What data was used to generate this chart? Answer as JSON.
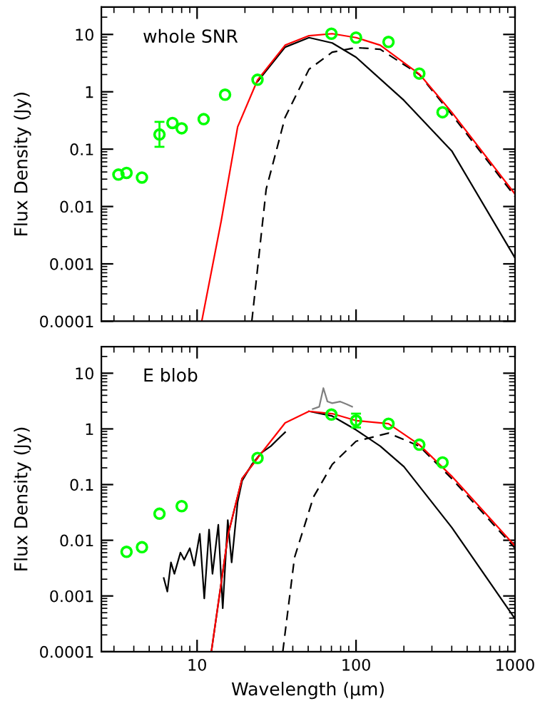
{
  "chart_data": [
    {
      "type": "line",
      "ylabel": "Flux Density (Jy)",
      "annotations": [
        "whole SNR"
      ],
      "xlim": [
        2.5,
        1000
      ],
      "ylim": [
        0.0001,
        30
      ],
      "log": "xy",
      "xticks": [
        10,
        100,
        1000
      ],
      "yticks": [
        0.0001,
        0.001,
        0.01,
        0.1,
        1,
        10
      ],
      "tick_labels": "y",
      "legend": false,
      "grid": false,
      "series": [
        {
          "color": "#000000",
          "line_style": "solid",
          "x": [
            24,
            35.8,
            50.6,
            70.8,
            100,
            200,
            400,
            1000
          ],
          "values": [
            1.5,
            6.0,
            8.8,
            7.1,
            4.0,
            0.71,
            0.093,
            0.00127
          ]
        },
        {
          "color": "#000000",
          "line_style": "dashed",
          "x": [
            22.1,
            27.2,
            35.8,
            50.6,
            70.8,
            100,
            142,
            250,
            400,
            1000
          ],
          "values": [
            0.0001,
            0.02,
            0.36,
            2.47,
            4.9,
            5.9,
            5.5,
            2.0,
            0.4,
            0.015
          ]
        },
        {
          "color": "#ff0000",
          "line_style": "solid",
          "x": [
            10.7,
            14.2,
            18,
            24,
            35.8,
            50.6,
            70.8,
            100,
            142,
            250,
            400,
            1000
          ],
          "values": [
            0.0001,
            0.0057,
            0.245,
            1.6,
            6.5,
            9.5,
            10.3,
            8.8,
            6.5,
            2.04,
            0.44,
            0.0165
          ]
        },
        {
          "type": "scatter",
          "color": "#00ff00",
          "marker": "circle",
          "x": [
            3.2,
            3.6,
            4.5,
            5.8,
            7,
            8,
            11,
            15,
            24,
            70,
            100,
            160,
            250,
            350
          ],
          "values": [
            0.036,
            0.0385,
            0.032,
            0.18,
            0.286,
            0.231,
            0.333,
            0.89,
            1.62,
            10.3,
            8.8,
            7.4,
            2.08,
            0.44
          ],
          "errors": [
            null,
            null,
            null,
            [
              0.11,
              0.3
            ],
            null,
            null,
            null,
            null,
            null,
            null,
            null,
            null,
            null,
            null
          ]
        }
      ]
    },
    {
      "type": "line",
      "xlabel": "Wavelength (μm)",
      "ylabel": "Flux Density (Jy)",
      "annotations": [
        "E blob"
      ],
      "xlim": [
        2.5,
        1000
      ],
      "ylim": [
        0.0001,
        30
      ],
      "log": "xy",
      "xticks": [
        10,
        100,
        1000
      ],
      "yticks": [
        0.0001,
        0.001,
        0.01,
        0.1,
        1,
        10
      ],
      "legend": false,
      "grid": false,
      "series": [
        {
          "color": "#000000",
          "line_style": "solid",
          "x": [
            6.17,
            6.5,
            6.85,
            7.2,
            7.86,
            8.3,
            9.0,
            9.6,
            10.4,
            11.1,
            11.9,
            12.5,
            13.6,
            14.5,
            15.6,
            16.5,
            18,
            19.2,
            22.1,
            25.3,
            29.1,
            33.4,
            35.8
          ],
          "values": [
            0.0021,
            0.0012,
            0.004,
            0.0025,
            0.006,
            0.0045,
            0.0072,
            0.0035,
            0.013,
            0.0009,
            0.0156,
            0.0025,
            0.019,
            0.0006,
            0.023,
            0.004,
            0.049,
            0.117,
            0.23,
            0.37,
            0.49,
            0.72,
            0.87
          ]
        },
        {
          "color": "#808080",
          "line_style": "solid",
          "x": [
            53.4,
            58.7,
            62.3,
            66.1,
            70.8,
            79.2,
            87.7,
            94.5
          ],
          "values": [
            2.28,
            2.5,
            5.4,
            3.1,
            2.9,
            3.1,
            2.76,
            2.5
          ]
        },
        {
          "color": "#000000",
          "line_style": "solid",
          "x": [
            12.3,
            15.7,
            19.2,
            24,
            35.8,
            50.6,
            70.8,
            100,
            142,
            200,
            400,
            1000
          ],
          "values": [
            0.0001,
            0.013,
            0.128,
            0.3,
            null,
            2.07,
            1.7,
            0.96,
            0.49,
            0.21,
            0.017,
            0.00039
          ]
        },
        {
          "color": "#000000",
          "line_style": "dashed",
          "x": [
            34.6,
            41,
            54,
            70.8,
            100,
            160,
            250,
            400,
            1000
          ],
          "values": [
            0.0001,
            0.0049,
            0.06,
            0.23,
            0.6,
            0.84,
            0.49,
            0.128,
            0.0072
          ]
        },
        {
          "color": "#ff0000",
          "line_style": "solid",
          "x": [
            12.3,
            15.7,
            19.2,
            24,
            35.8,
            50.6,
            70.8,
            100,
            160,
            250,
            400,
            1000
          ],
          "values": [
            0.0001,
            0.013,
            0.128,
            0.3,
            1.28,
            2.07,
            1.88,
            1.41,
            1.24,
            0.52,
            0.141,
            0.0079
          ]
        },
        {
          "type": "scatter",
          "color": "#00ff00",
          "marker": "circle",
          "x": [
            3.6,
            4.5,
            5.8,
            8,
            24,
            70,
            100,
            160,
            250,
            350
          ],
          "values": [
            0.0062,
            0.0075,
            0.03,
            0.041,
            0.3,
            1.81,
            1.41,
            1.24,
            0.52,
            0.25
          ],
          "errors": [
            null,
            null,
            null,
            null,
            null,
            null,
            [
              1.06,
              1.88
            ],
            null,
            null,
            null
          ]
        }
      ]
    }
  ]
}
